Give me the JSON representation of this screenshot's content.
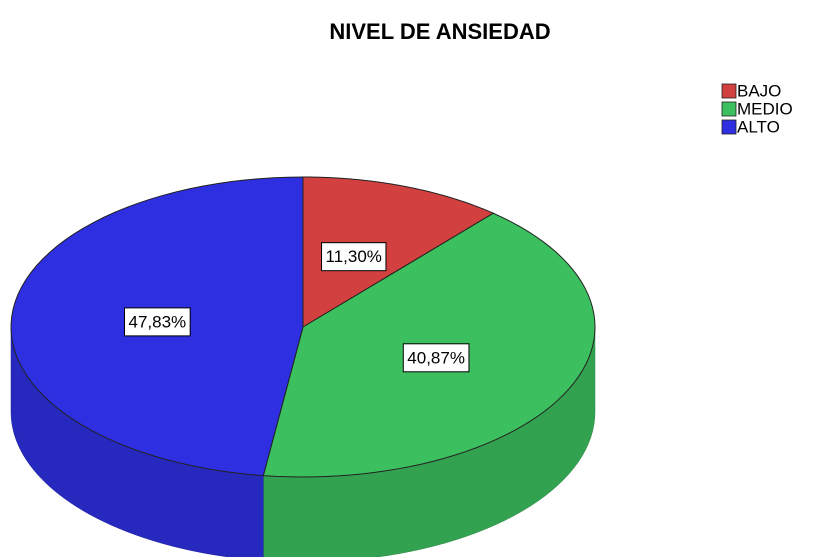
{
  "chart_data": {
    "type": "pie",
    "title": "NIVEL DE ANSIEDAD",
    "categories": [
      "BAJO",
      "MEDIO",
      "ALTO"
    ],
    "values": [
      11.3,
      40.87,
      47.83
    ],
    "value_labels": [
      "11,30%",
      "40,87%",
      "47,83%"
    ],
    "colors": [
      "#d2413f",
      "#3cbf5e",
      "#2d2fe0"
    ],
    "legend": "top-right"
  }
}
